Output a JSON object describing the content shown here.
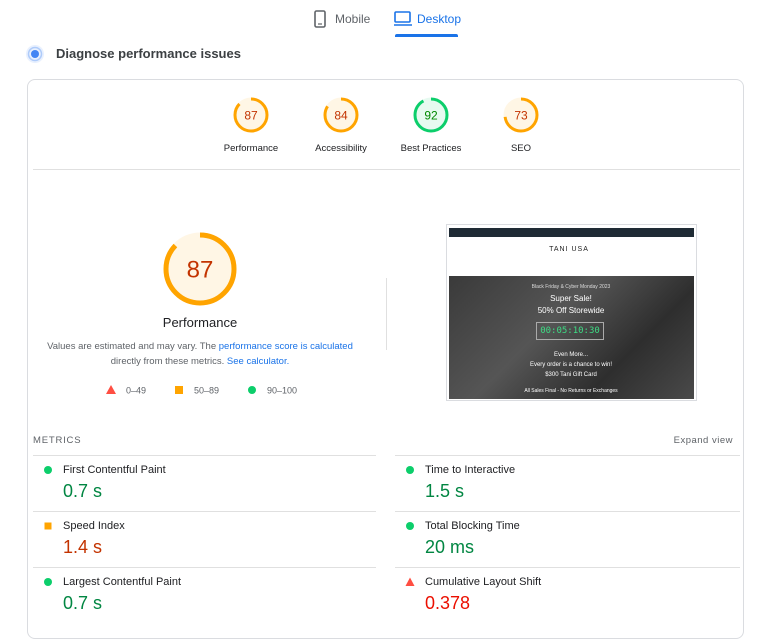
{
  "tabs": [
    "Mobile",
    "Desktop"
  ],
  "active_tab": 1,
  "section_title": "Diagnose performance issues",
  "scores": [
    {
      "label": "Performance",
      "score": 87,
      "color": "#ffa400",
      "text_color": "#c33300"
    },
    {
      "label": "Accessibility",
      "score": 84,
      "color": "#ffa400",
      "text_color": "#c33300"
    },
    {
      "label": "Best Practices",
      "score": 92,
      "color": "#0cce6b",
      "text_color": "#008800"
    },
    {
      "label": "SEO",
      "score": 73,
      "color": "#ffa400",
      "text_color": "#c33300"
    }
  ],
  "note": {
    "text1": "Values are estimated and may vary. The",
    "link1": "performance score is calculated",
    "text2": "directly from these metrics.",
    "link2": "See calculator."
  },
  "legend": [
    {
      "label": "0–49",
      "color": "#ff4e42"
    },
    {
      "label": "50–89",
      "color": "#ffa400"
    },
    {
      "label": "90–100",
      "color": "#0cce6b"
    }
  ],
  "preview": {
    "brand": "TANI USA",
    "eyebrow": "Black Friday & Cyber Monday 2023",
    "headline": "Super Sale!",
    "subhead": "50% Off Storewide",
    "countdown": "00:05:10:30",
    "more": "Even More...",
    "chance": "Every order is a chance to win!",
    "prize": "$300 Tani Gift Card",
    "footer": "All Sales Final - No Returns or Exchanges"
  },
  "metrics": {
    "title": "METRICS",
    "expand": "Expand view",
    "items": [
      {
        "name": "First Contentful Paint",
        "value": "0.7 s",
        "color": "#0cce6b",
        "text_color": "#018642",
        "shape": "circle"
      },
      {
        "name": "Time to Interactive",
        "value": "1.5 s",
        "color": "#0cce6b",
        "text_color": "#018642",
        "shape": "circle"
      },
      {
        "name": "Speed Index",
        "value": "1.4 s",
        "color": "#ffa400",
        "text_color": "#c33300",
        "shape": "square"
      },
      {
        "name": "Total Blocking Time",
        "value": "20 ms",
        "color": "#0cce6b",
        "text_color": "#018642",
        "shape": "circle"
      },
      {
        "name": "Largest Contentful Paint",
        "value": "0.7 s",
        "color": "#0cce6b",
        "text_color": "#018642",
        "shape": "circle"
      },
      {
        "name": "Cumulative Layout Shift",
        "value": "0.378",
        "color": "#ff4e42",
        "text_color": "#eb0f00",
        "shape": "triangle"
      }
    ]
  }
}
